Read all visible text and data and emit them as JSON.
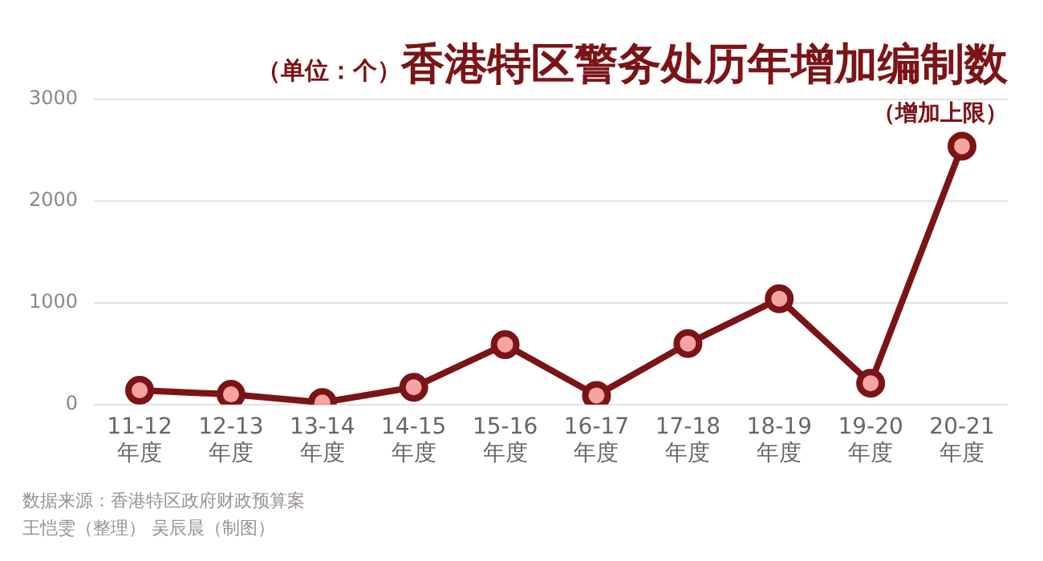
{
  "chart_data": {
    "type": "line",
    "title": "香港特区警务处历年增加编制数",
    "ylabel": "（单位：个）",
    "categories": [
      "11-12\n年度",
      "12-13\n年度",
      "13-14\n年度",
      "14-15\n年度",
      "15-16\n年度",
      "16-17\n年度",
      "17-18\n年度",
      "18-19\n年度",
      "19-20\n年度",
      "20-21\n年度"
    ],
    "series": [
      {
        "color": "#7b1416",
        "values": [
          140,
          100,
          20,
          170,
          590,
          90,
          600,
          1040,
          210,
          2540
        ]
      }
    ],
    "ylim": [
      0,
      3000
    ],
    "yticks": [
      0,
      1000,
      2000,
      3000
    ],
    "grid": "y",
    "legend": false,
    "marker": "circle",
    "line_style": "solid",
    "annotations": [
      "（增加上限）",
      "数据来源：香港特区政府财政预算案",
      "王恺雯（整理） 吴辰晨（制图）"
    ]
  }
}
